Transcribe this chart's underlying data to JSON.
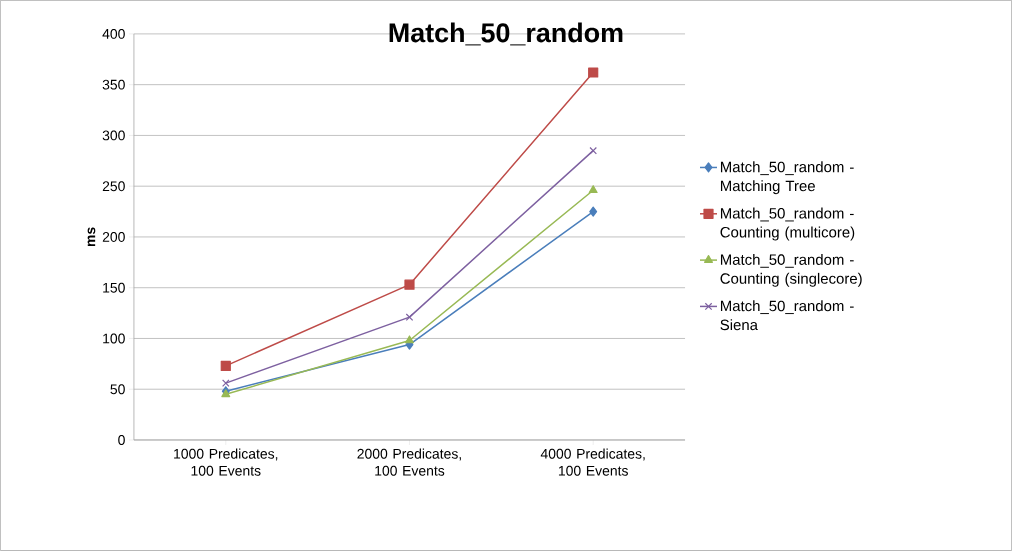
{
  "chart_data": {
    "type": "line",
    "title": "Match_50_random",
    "ylabel": "ms",
    "categories": [
      "1000 Predicates, 100 Events",
      "2000 Predicates, 100 Events",
      "4000 Predicates, 100 Events"
    ],
    "series": [
      {
        "name": "Match_50_random - Matching Tree",
        "color": "#4a7ebb",
        "marker": "diamond",
        "values": [
          48,
          94,
          225
        ]
      },
      {
        "name": "Match_50_random - Counting (multicore)",
        "color": "#be4b48",
        "marker": "square",
        "values": [
          73,
          153,
          362
        ]
      },
      {
        "name": "Match_50_random - Counting (singlecore)",
        "color": "#98b954",
        "marker": "triangle",
        "values": [
          45,
          98,
          246
        ]
      },
      {
        "name": "Match_50_random - Siena",
        "color": "#7d60a0",
        "marker": "cross",
        "values": [
          56,
          121,
          285
        ]
      }
    ],
    "ylim": [
      0,
      400
    ],
    "yticks": [
      0,
      50,
      100,
      150,
      200,
      250,
      300,
      350,
      400
    ],
    "grid": "y",
    "legend": "right",
    "line_style": "solid"
  }
}
